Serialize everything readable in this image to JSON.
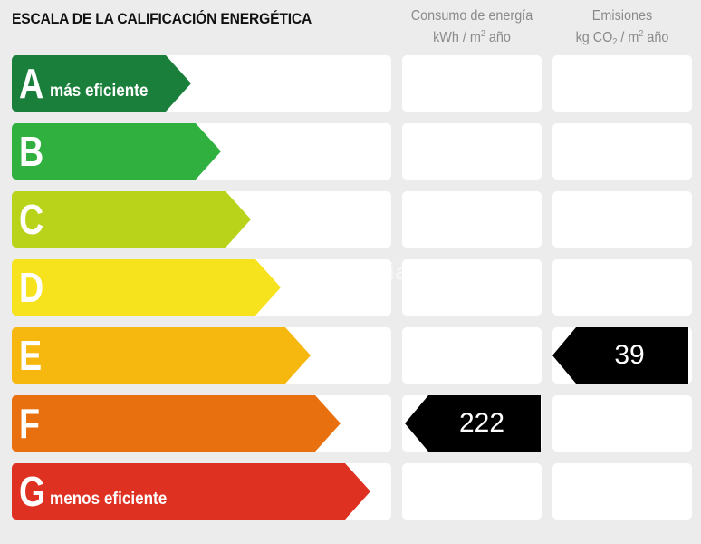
{
  "header": {
    "title": "ESCALA DE LA CALIFICACIÓN ENERGÉTICA",
    "col_consumo_line1": "Consumo de energía",
    "col_consumo_line2_pre": "kWh / m",
    "col_consumo_sup": "2",
    "col_consumo_line2_post": " año",
    "col_emisiones_line1": "Emisiones",
    "col_emisiones_pre": "kg CO",
    "col_emisiones_sub": "2",
    "col_emisiones_mid": " / m",
    "col_emisiones_sup": "2",
    "col_emisiones_post": " año"
  },
  "ratings": [
    {
      "letter": "A",
      "desc": "más eficiente",
      "color": "#1a7f3a"
    },
    {
      "letter": "B",
      "desc": "",
      "color": "#2fb03f"
    },
    {
      "letter": "C",
      "desc": "",
      "color": "#b9d21a"
    },
    {
      "letter": "D",
      "desc": "",
      "color": "#f7e21e"
    },
    {
      "letter": "E",
      "desc": "",
      "color": "#f6b70f"
    },
    {
      "letter": "F",
      "desc": "",
      "color": "#e8700e"
    },
    {
      "letter": "G",
      "desc": "menos eficiente",
      "color": "#df3121"
    }
  ],
  "consumo": {
    "value": "222",
    "rating": "F"
  },
  "emisiones": {
    "value": "39",
    "rating": "E"
  },
  "watermark": "habitaclia"
}
